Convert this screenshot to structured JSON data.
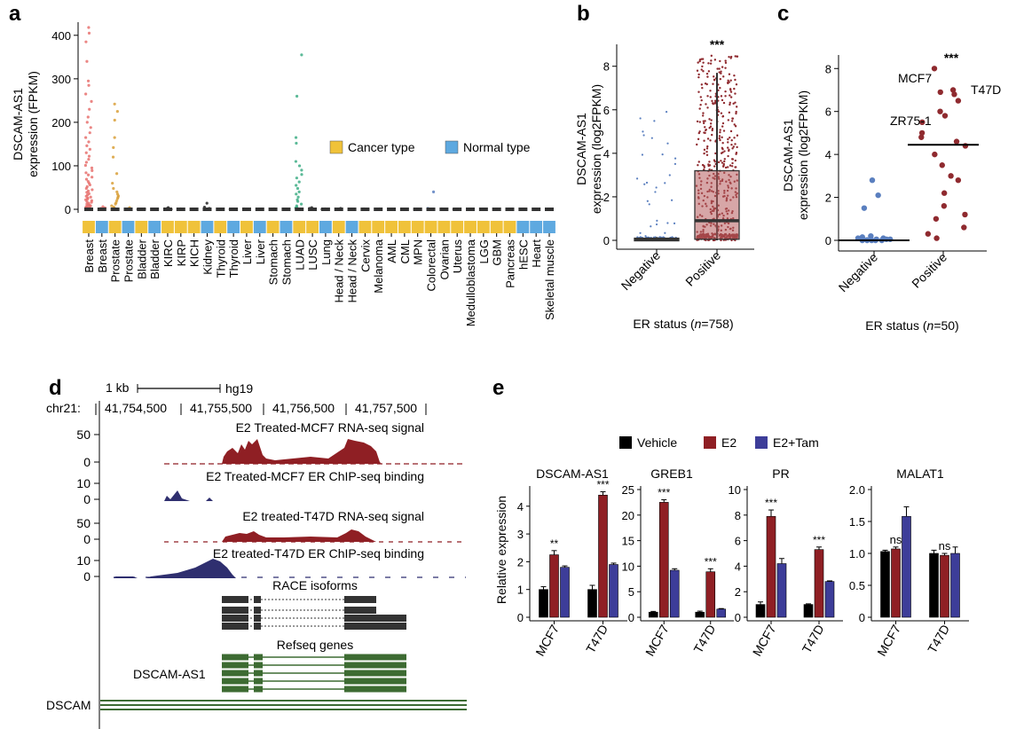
{
  "panels": {
    "a": "a",
    "b": "b",
    "c": "c",
    "d": "d",
    "e": "e"
  },
  "colors": {
    "breast": "#e8716f",
    "prostate": "#d9a03a",
    "lung": "#3fae86",
    "dark": "#222222",
    "cancer_type": "#f0c23a",
    "normal_type": "#5ea9e0",
    "er_neg": "#5a7fbf",
    "er_pos": "#8f2a2f",
    "box_fill": "#b65c5f",
    "vehicle": "#000000",
    "e2": "#8f1f24",
    "e2tam": "#3d3d99",
    "track_red": "#8f1f24",
    "track_blue": "#2f2f6f",
    "gene_green": "#3d6b32",
    "race_gray": "#333333"
  },
  "chart_data": [
    {
      "panel": "a",
      "type": "scatter",
      "ylabel": [
        "DSCAM-AS1",
        "expression (FPKM)"
      ],
      "ylim": [
        0,
        420
      ],
      "yticks": [
        0,
        100,
        200,
        300,
        400
      ],
      "legend": {
        "cancer_label": "Cancer type",
        "normal_label": "Normal type",
        "placement": "right"
      },
      "categories": [
        "Breast",
        "Breast",
        "Prostate",
        "Prostate",
        "Bladder",
        "Bladder",
        "KIRC",
        "KIRP",
        "KICH",
        "Kidney",
        "Thyroid",
        "Thyroid",
        "Liver",
        "Liver",
        "Stomach",
        "Stomach",
        "LUAD",
        "LUSC",
        "Lung",
        "Head / Neck",
        "Head / Neck",
        "Cervix",
        "Melanoma",
        "AML",
        "CML",
        "MPN",
        "Colorectal",
        "Ovarian",
        "Uterus",
        "Medulloblastoma",
        "LGG",
        "GBM",
        "Pancreas",
        "hESC",
        "Heart",
        "Skeletal muscle"
      ],
      "category_type": [
        "cancer",
        "normal",
        "cancer",
        "normal",
        "cancer",
        "normal",
        "cancer",
        "cancer",
        "cancer",
        "normal",
        "cancer",
        "normal",
        "cancer",
        "normal",
        "cancer",
        "normal",
        "cancer",
        "cancer",
        "normal",
        "cancer",
        "normal",
        "cancer",
        "cancer",
        "cancer",
        "cancer",
        "cancer",
        "cancer",
        "cancer",
        "cancer",
        "cancer",
        "cancer",
        "cancer",
        "cancer",
        "normal",
        "normal",
        "normal"
      ],
      "series_values": [
        [
          418,
          405,
          385,
          340,
          295,
          285,
          265,
          248,
          230,
          212,
          200,
          188,
          176,
          165,
          155,
          146,
          138,
          130,
          122,
          115,
          108,
          101,
          95,
          89,
          84,
          79,
          74,
          69,
          64,
          60,
          56,
          52,
          48,
          45,
          42,
          39,
          36,
          33,
          30,
          28,
          26,
          24,
          22,
          20,
          18,
          16,
          14,
          12,
          10,
          9,
          8,
          7,
          6,
          5,
          4,
          3,
          2,
          1,
          0
        ],
        [
          6,
          3,
          2,
          1,
          0
        ],
        [
          242,
          225,
          205,
          165,
          142,
          120,
          82,
          60,
          48,
          40,
          35,
          31,
          28,
          25,
          20,
          15,
          12,
          8,
          5,
          3,
          1,
          0
        ],
        [
          4,
          2,
          0
        ],
        [
          1,
          0
        ],
        [
          0
        ],
        [
          4,
          2,
          1,
          0
        ],
        [
          1,
          0
        ],
        [
          0
        ],
        [
          14,
          5,
          2,
          0
        ],
        [
          0
        ],
        [
          0
        ],
        [
          1,
          0
        ],
        [
          0
        ],
        [
          1,
          0
        ],
        [
          0
        ],
        [
          355,
          260,
          165,
          152,
          110,
          100,
          90,
          80,
          72,
          63,
          55,
          48,
          40,
          35,
          28,
          22,
          18,
          12,
          8,
          5,
          3,
          1,
          0
        ],
        [
          4,
          2,
          0
        ],
        [
          1,
          0
        ],
        [
          2,
          0
        ],
        [
          0
        ],
        [
          1,
          0
        ],
        [
          1,
          0
        ],
        [
          0
        ],
        [
          0
        ],
        [
          0
        ],
        [
          40,
          2,
          0
        ],
        [
          1,
          0
        ],
        [
          0
        ],
        [
          0
        ],
        [
          0
        ],
        [
          0
        ],
        [
          0
        ],
        [
          0
        ],
        [
          0
        ],
        [
          0
        ]
      ]
    },
    {
      "panel": "b",
      "type": "box",
      "ylabel": [
        "DSCAM-AS1",
        "expression (log2FPKM)"
      ],
      "xlabel_prefix": "ER status (",
      "xlabel_italic": "n",
      "xlabel_suffix": "=758)",
      "ylim": [
        0,
        8.6
      ],
      "yticks": [
        0,
        2,
        4,
        6,
        8
      ],
      "categories": [
        "Negative",
        "Positive"
      ],
      "significance": "***",
      "box": [
        {
          "q1": 0,
          "median": 0.05,
          "q3": 0.1,
          "whisker_low": 0,
          "whisker_high": 0.15
        },
        {
          "q1": 0.05,
          "median": 0.9,
          "q3": 3.2,
          "whisker_low": 0,
          "whisker_high": 7.7
        }
      ]
    },
    {
      "panel": "c",
      "type": "scatter",
      "ylabel": [
        "DSCAM-AS1",
        "expression (log2FPKM)"
      ],
      "xlabel_prefix": "ER status (",
      "xlabel_italic": "n",
      "xlabel_suffix": "=50)",
      "ylim": [
        0,
        8.3
      ],
      "yticks": [
        0,
        2,
        4,
        6,
        8
      ],
      "categories": [
        "Negative",
        "Positive"
      ],
      "significance": "***",
      "medians": [
        0,
        4.45
      ],
      "negative": [
        2.8,
        2.1,
        1.5,
        0.2,
        0.15,
        0.1,
        0.1,
        0.05,
        0.05,
        0.05,
        0.02,
        0,
        0,
        0,
        0,
        0
      ],
      "positive": [
        8.0,
        7.0,
        6.8,
        6.9,
        6.5,
        6.0,
        5.8,
        5.5,
        5.0,
        4.8,
        4.6,
        4.4,
        4.0,
        3.5,
        3.0,
        2.8,
        2.2,
        1.6,
        1.2,
        1.0,
        0.6,
        0.3,
        0.1
      ],
      "annotations": [
        "MCF7",
        "T47D",
        "ZR75-1"
      ]
    },
    {
      "panel": "e",
      "type": "bar",
      "ylabel": "Relative expression",
      "legend": [
        "Vehicle",
        "E2",
        "E2+Tam"
      ],
      "categories": [
        "MCF7",
        "T47D"
      ],
      "subplots": [
        {
          "title": "DSCAM-AS1",
          "ylim": [
            0,
            4.6
          ],
          "yticks": [
            0,
            1,
            2,
            3,
            4
          ],
          "values": [
            [
              1.0,
              2.25,
              1.8
            ],
            [
              1.0,
              4.4,
              1.9
            ]
          ],
          "errors": [
            [
              0.1,
              0.15,
              0.05
            ],
            [
              0.15,
              0.12,
              0.05
            ]
          ],
          "sig": [
            "**",
            "***"
          ]
        },
        {
          "title": "GREB1",
          "ylim": [
            0,
            25
          ],
          "yticks": [
            0,
            5,
            10,
            15,
            20,
            25
          ],
          "values": [
            [
              1.0,
              22.5,
              9.2
            ],
            [
              1.0,
              8.9,
              1.6
            ]
          ],
          "errors": [
            [
              0.15,
              0.5,
              0.3
            ],
            [
              0.2,
              0.6,
              0.1
            ]
          ],
          "sig": [
            "***",
            "***"
          ]
        },
        {
          "title": "PR",
          "ylim": [
            0,
            10
          ],
          "yticks": [
            0,
            2,
            4,
            6,
            8,
            10
          ],
          "values": [
            [
              1.0,
              7.9,
              4.2
            ],
            [
              1.0,
              5.3,
              2.8
            ]
          ],
          "errors": [
            [
              0.2,
              0.5,
              0.4
            ],
            [
              0.05,
              0.2,
              0.05
            ]
          ],
          "sig": [
            "***",
            "***"
          ]
        },
        {
          "title": "MALAT1",
          "ylim": [
            0,
            2.0
          ],
          "yticks": [
            0,
            0.5,
            1.0,
            1.5,
            2.0
          ],
          "ytick_labels": [
            "0",
            "0.5",
            "1.0",
            "1.5",
            "2.0"
          ],
          "values": [
            [
              1.03,
              1.07,
              1.58
            ],
            [
              1.0,
              0.97,
              1.0
            ]
          ],
          "errors": [
            [
              0.02,
              0.03,
              0.15
            ],
            [
              0.05,
              0.03,
              0.1
            ]
          ],
          "sig": [
            "ns",
            "ns"
          ]
        }
      ]
    }
  ],
  "panel_d": {
    "scale_label": "1 kb",
    "genome": "hg19",
    "chrom": "chr21:",
    "coords": [
      "41,754,500",
      "41,755,500",
      "41,756,500",
      "41,757,500"
    ],
    "tracks": [
      {
        "title": "E2 Treated-MCF7 RNA-seq signal",
        "ymax": "50",
        "ymin": "0"
      },
      {
        "title": "E2 Treated-MCF7 ER ChIP-seq binding",
        "ymax": "10",
        "ymin": "0"
      },
      {
        "title": "E2 treated-T47D RNA-seq signal",
        "ymax": "50",
        "ymin": "0"
      },
      {
        "title": "E2 treated-T47D ER ChIP-seq binding",
        "ymax": "10",
        "ymin": "0"
      }
    ],
    "race_label": "RACE isoforms",
    "refseq_label": "Refseq genes",
    "gene1": "DSCAM-AS1",
    "gene2": "DSCAM"
  }
}
